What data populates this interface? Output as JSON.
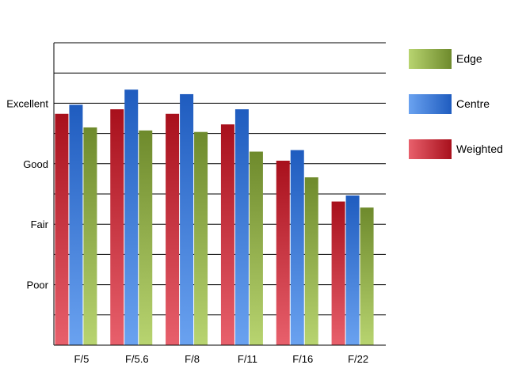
{
  "chart_data": {
    "type": "bar",
    "title": "",
    "xlabel": "",
    "ylabel": "",
    "categories": [
      "F/5",
      "F/5.6",
      "F/8",
      "F/11",
      "F/16",
      "F/22"
    ],
    "y_tick_labels": [
      {
        "label": "Poor",
        "value": 2
      },
      {
        "label": "Fair",
        "value": 4
      },
      {
        "label": "Good",
        "value": 6
      },
      {
        "label": "Excellent",
        "value": 8
      }
    ],
    "ylim": [
      0,
      10
    ],
    "grid": true,
    "legend_position": "right",
    "series": [
      {
        "name": "Weighted",
        "values": [
          7.65,
          7.8,
          7.65,
          7.3,
          6.1,
          4.75
        ],
        "colors": [
          "#e8606c",
          "#a8101c"
        ]
      },
      {
        "name": "Centre",
        "values": [
          7.95,
          8.45,
          8.3,
          7.8,
          6.45,
          4.95
        ],
        "colors": [
          "#6aa2f0",
          "#1f5cbf"
        ]
      },
      {
        "name": "Edge",
        "values": [
          7.2,
          7.1,
          7.05,
          6.4,
          5.55,
          4.55
        ],
        "colors": [
          "#b8d470",
          "#6e8a2c"
        ]
      }
    ],
    "legend_order": [
      "Edge",
      "Centre",
      "Weighted"
    ]
  }
}
